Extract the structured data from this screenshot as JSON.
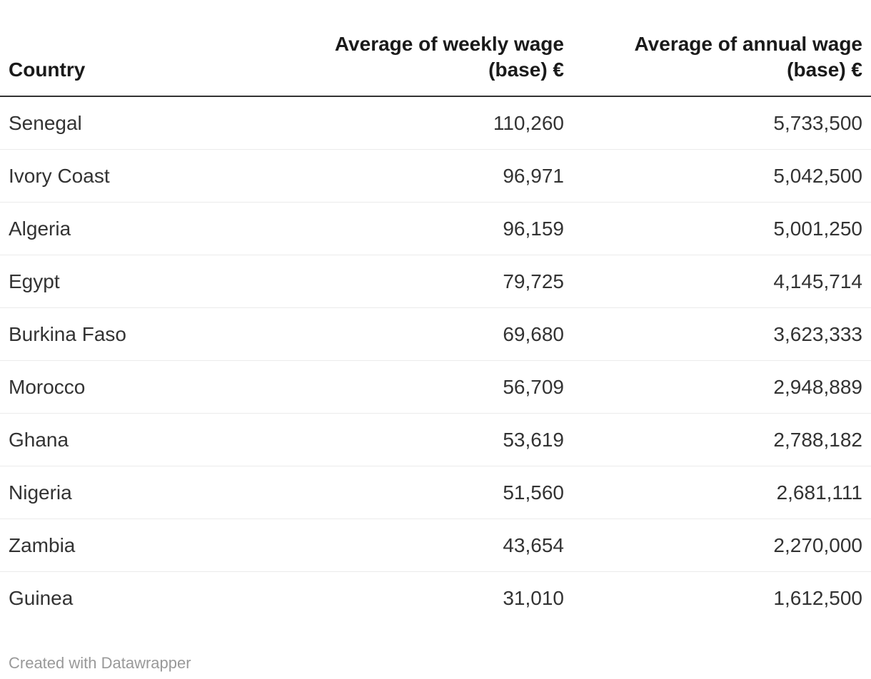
{
  "table": {
    "columns": [
      {
        "label": "Country",
        "align": "left"
      },
      {
        "label": "Average of weekly wage (base) €",
        "align": "right"
      },
      {
        "label": "Average of annual wage (base) €",
        "align": "right"
      }
    ],
    "rows": [
      [
        "Senegal",
        "110,260",
        "5,733,500"
      ],
      [
        "Ivory Coast",
        "96,971",
        "5,042,500"
      ],
      [
        "Algeria",
        "96,159",
        "5,001,250"
      ],
      [
        "Egypt",
        "79,725",
        "4,145,714"
      ],
      [
        "Burkina Faso",
        "69,680",
        "3,623,333"
      ],
      [
        "Morocco",
        "56,709",
        "2,948,889"
      ],
      [
        "Ghana",
        "53,619",
        "2,788,182"
      ],
      [
        "Nigeria",
        "51,560",
        "2,681,111"
      ],
      [
        "Zambia",
        "43,654",
        "2,270,000"
      ],
      [
        "Guinea",
        "31,010",
        "1,612,500"
      ]
    ]
  },
  "footer": {
    "attribution": "Created with Datawrapper"
  },
  "colors": {
    "background": "#ffffff",
    "header_text": "#1a1a1a",
    "body_text": "#333333",
    "header_border": "#333333",
    "row_border": "#ebebeb",
    "attribution_text": "#999999"
  },
  "chart_data": {
    "type": "table",
    "columns": [
      "Country",
      "Average of weekly wage (base) €",
      "Average of annual wage (base) €"
    ],
    "rows": [
      {
        "country": "Senegal",
        "weekly_wage": 110260,
        "annual_wage": 5733500
      },
      {
        "country": "Ivory Coast",
        "weekly_wage": 96971,
        "annual_wage": 5042500
      },
      {
        "country": "Algeria",
        "weekly_wage": 96159,
        "annual_wage": 5001250
      },
      {
        "country": "Egypt",
        "weekly_wage": 79725,
        "annual_wage": 4145714
      },
      {
        "country": "Burkina Faso",
        "weekly_wage": 69680,
        "annual_wage": 3623333
      },
      {
        "country": "Morocco",
        "weekly_wage": 56709,
        "annual_wage": 2948889
      },
      {
        "country": "Ghana",
        "weekly_wage": 53619,
        "annual_wage": 2788182
      },
      {
        "country": "Nigeria",
        "weekly_wage": 51560,
        "annual_wage": 2681111
      },
      {
        "country": "Zambia",
        "weekly_wage": 43654,
        "annual_wage": 2270000
      },
      {
        "country": "Guinea",
        "weekly_wage": 31010,
        "annual_wage": 1612500
      }
    ]
  }
}
